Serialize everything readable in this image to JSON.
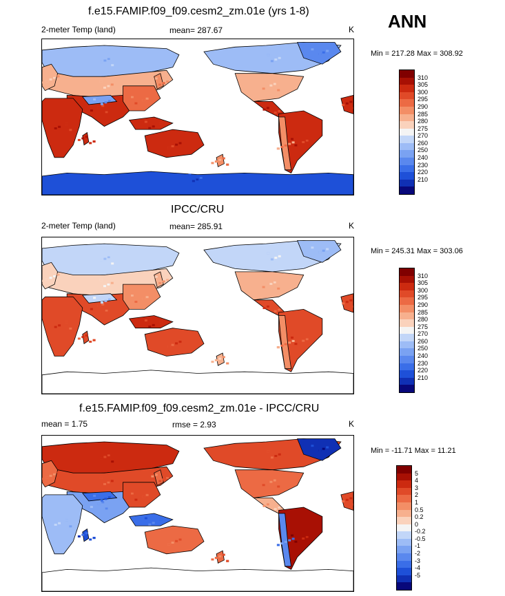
{
  "season": "ANN",
  "colors": {
    "temp_scale": [
      "#08087a",
      "#1030b4",
      "#1e50d8",
      "#3a6ee8",
      "#5a88ee",
      "#7aa2f2",
      "#9dbcf6",
      "#c2d6f8",
      "#f4f4f4",
      "#fad2bc",
      "#f7b08e",
      "#f38e66",
      "#ec6a44",
      "#e04a28",
      "#cc2a10",
      "#a81004",
      "#800000"
    ],
    "diff_scale": [
      "#08087a",
      "#1030b4",
      "#1e50d8",
      "#3a6ee8",
      "#5a88ee",
      "#7aa2f2",
      "#9dbcf6",
      "#c2d6f8",
      "#f4f4f4",
      "#fad2bc",
      "#f7b08e",
      "#f38e66",
      "#ec6a44",
      "#e04a28",
      "#cc2a10",
      "#a81004",
      "#800000"
    ]
  },
  "panels": [
    {
      "title": "f.e15.FAMIP.f09_f09.cesm2_zm.01e (yrs 1-8)",
      "variable": "2-meter Temp (land)",
      "stat_text": "mean= 287.67",
      "stat2_text": "",
      "units": "K",
      "minmax": "Min = 217.28 Max = 308.92",
      "scale": "temp",
      "levels": [
        "310",
        "305",
        "300",
        "295",
        "290",
        "285",
        "280",
        "275",
        "270",
        "260",
        "250",
        "240",
        "230",
        "220",
        "210"
      ]
    },
    {
      "title": "IPCC/CRU",
      "variable": "2-meter Temp (land)",
      "stat_text": "mean= 285.91",
      "stat2_text": "",
      "units": "K",
      "minmax": "Min = 245.31 Max = 303.06",
      "scale": "temp",
      "levels": [
        "310",
        "305",
        "300",
        "295",
        "290",
        "285",
        "280",
        "275",
        "270",
        "260",
        "250",
        "240",
        "230",
        "220",
        "210"
      ]
    },
    {
      "title": "f.e15.FAMIP.f09_f09.cesm2_zm.01e - IPCC/CRU",
      "variable": "mean =   1.75",
      "stat_text": "rmse =   2.93",
      "stat2_text": "",
      "units": "K",
      "minmax": "Min = -11.71 Max =  11.21",
      "scale": "diff",
      "levels": [
        "5",
        "4",
        "3",
        "2",
        "1",
        "0.5",
        "0.2",
        "0",
        "-0.2",
        "-0.5",
        "-1",
        "-2",
        "-3",
        "-4",
        "-5"
      ]
    }
  ]
}
